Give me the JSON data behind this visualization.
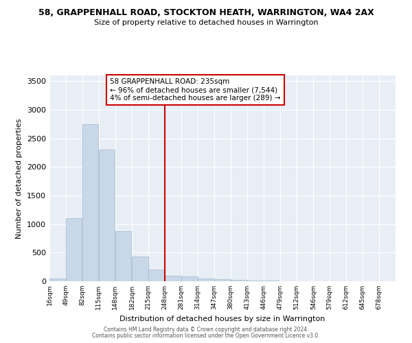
{
  "title": "58, GRAPPENHALL ROAD, STOCKTON HEATH, WARRINGTON, WA4 2AX",
  "subtitle": "Size of property relative to detached houses in Warrington",
  "xlabel": "Distribution of detached houses by size in Warrington",
  "ylabel": "Number of detached properties",
  "bar_color": "#c8d8e8",
  "bar_edge_color": "#a0b8cc",
  "bg_color": "#e8eef5",
  "grid_color": "#ffffff",
  "vline_color": "#cc0000",
  "annotation_text": "58 GRAPPENHALL ROAD: 235sqm\n← 96% of detached houses are smaller (7,544)\n4% of semi-detached houses are larger (289) →",
  "annotation_box_color": "#cc0000",
  "annotation_fill": "#ffffff",
  "footer_line1": "Contains HM Land Registry data © Crown copyright and database right 2024.",
  "footer_line2": "Contains public sector information licensed under the Open Government Licence v3.0.",
  "bins": [
    16,
    49,
    82,
    115,
    148,
    182,
    215,
    248,
    281,
    314,
    347,
    380,
    413,
    446,
    479,
    512,
    546,
    579,
    612,
    645,
    678
  ],
  "counts": [
    50,
    1100,
    2750,
    2300,
    880,
    430,
    200,
    100,
    80,
    50,
    40,
    30,
    15,
    10,
    5,
    5,
    3,
    2,
    1,
    1
  ],
  "ylim": [
    0,
    3600
  ],
  "yticks": [
    0,
    500,
    1000,
    1500,
    2000,
    2500,
    3000,
    3500
  ]
}
